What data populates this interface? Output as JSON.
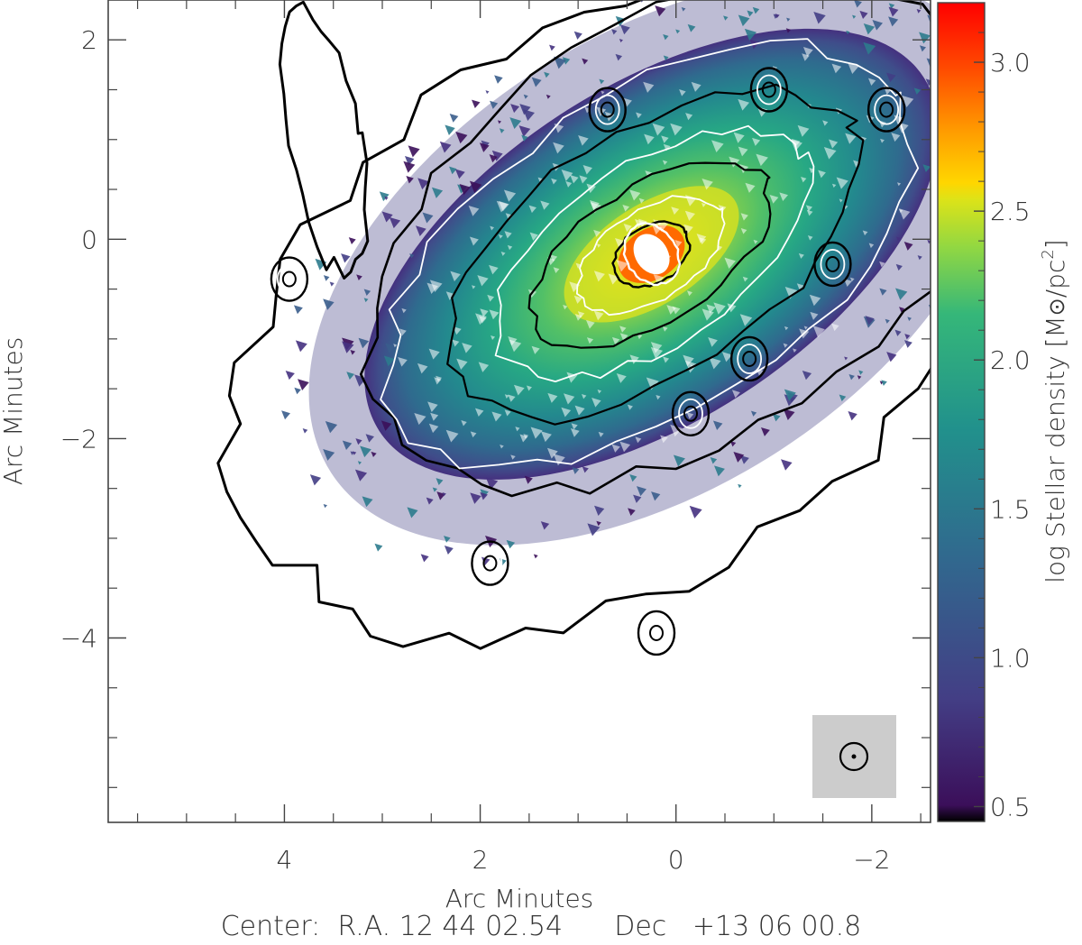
{
  "chart_data": {
    "type": "heatmap",
    "xlabel": "Arc Minutes",
    "ylabel": "Arc Minutes",
    "xlim": [
      5.8,
      -2.6
    ],
    "ylim": [
      -5.85,
      2.4
    ],
    "x_ticks": [
      4,
      2,
      0,
      -2
    ],
    "x_tick_labels": [
      "4",
      "2",
      "0",
      "−2"
    ],
    "y_ticks": [
      2,
      0,
      -2,
      -4
    ],
    "y_tick_labels": [
      "2",
      "0",
      "−2",
      "−4"
    ],
    "grid": false,
    "colorbar": {
      "label": "log Stellar density [M☉/pc²]",
      "label_main": "log Stellar density [M",
      "label_unit": "/pc",
      "label_sup": "2",
      "label_close": "]",
      "range": [
        0.45,
        3.2
      ],
      "ticks": [
        3.0,
        2.5,
        2.0,
        1.5,
        1.0,
        0.5
      ],
      "tick_labels": [
        "3.0",
        "2.5",
        "2.0",
        "1.5",
        "1.0",
        "0.5"
      ],
      "colormap": "viridis-like with red/orange top"
    },
    "galaxy": {
      "center": [
        0.25,
        -0.15
      ],
      "position_angle_deg": 33,
      "peak_log_density": 3.2
    },
    "point_sources": [
      {
        "x": 0.7,
        "y": 1.3
      },
      {
        "x": -0.95,
        "y": 1.5
      },
      {
        "x": -2.15,
        "y": 1.3
      },
      {
        "x": -1.6,
        "y": -0.25
      },
      {
        "x": -0.75,
        "y": -1.2
      },
      {
        "x": -0.15,
        "y": -1.75
      },
      {
        "x": 1.9,
        "y": -3.25
      },
      {
        "x": 3.95,
        "y": -0.4
      },
      {
        "x": 0.2,
        "y": -3.95
      }
    ],
    "beam_inset": {
      "position": "bottom-right",
      "background": "#cccccc"
    },
    "center_text": "Center:  R.A. 12 44 02.54      Dec   +13 06 00.8"
  }
}
